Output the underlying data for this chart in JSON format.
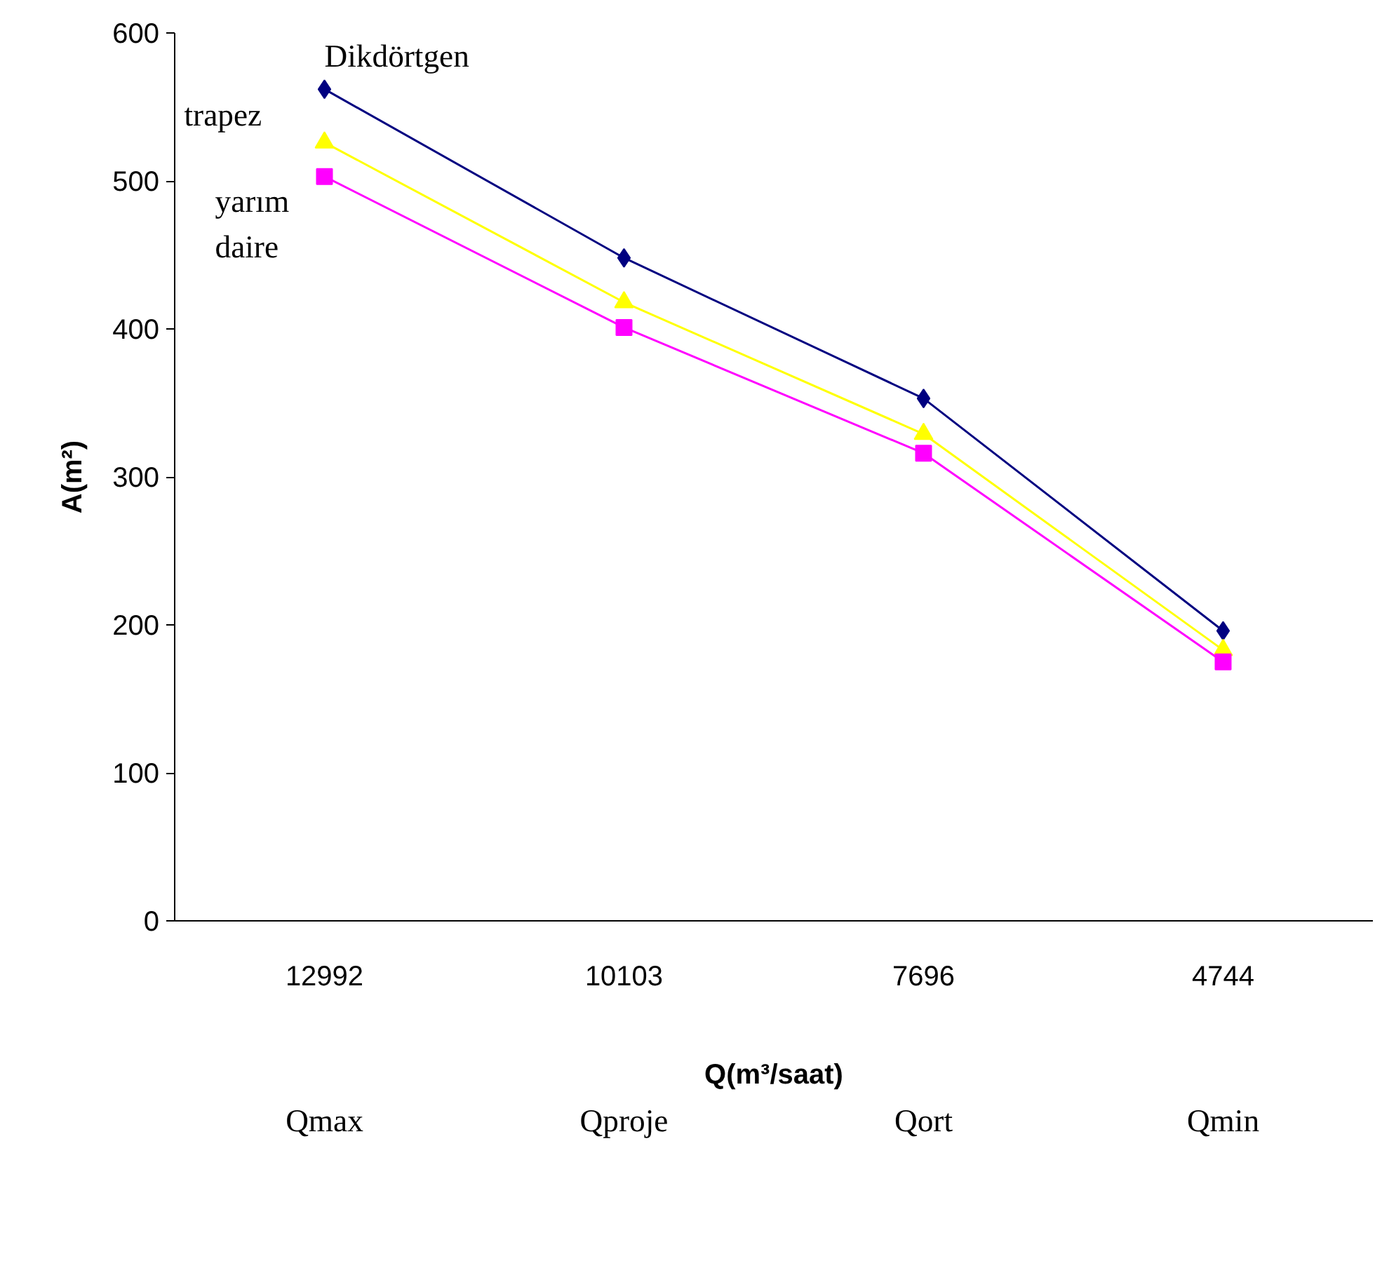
{
  "chart_data": {
    "type": "line",
    "xlabel": "Q(m³/saat)",
    "ylabel": "A(m²)",
    "categories": [
      "12992",
      "10103",
      "7696",
      "4744"
    ],
    "annotations": [
      "Qmax",
      "Qproje",
      "Qort",
      "Qmin"
    ],
    "ylim": [
      0,
      600
    ],
    "yticks": [
      0,
      100,
      200,
      300,
      400,
      500,
      600
    ],
    "grid": false,
    "series": [
      {
        "name": "Dikdörtgen",
        "color": "#000080",
        "marker": "diamond",
        "values": [
          562,
          448,
          353,
          196
        ]
      },
      {
        "name": "trapez",
        "color": "#ffff00",
        "marker": "triangle",
        "values": [
          526,
          418,
          329,
          183
        ]
      },
      {
        "name": "yarım daire",
        "color": "#ff00ff",
        "marker": "square",
        "values": [
          503,
          401,
          316,
          175
        ]
      }
    ]
  }
}
